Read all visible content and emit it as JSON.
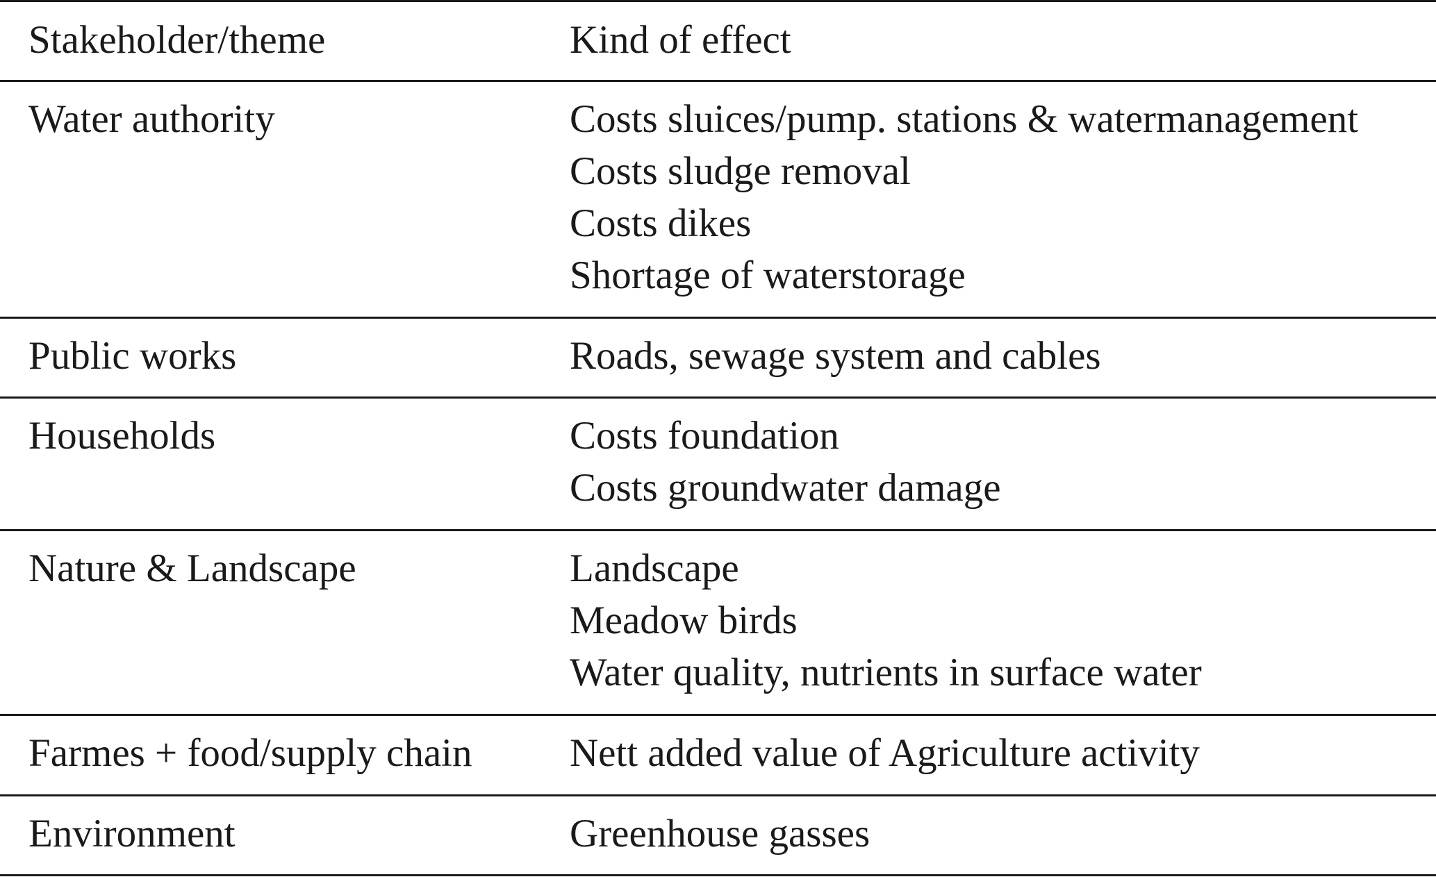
{
  "table": {
    "headers": [
      "Stakeholder/theme",
      "Kind of effect"
    ],
    "rows": [
      {
        "stakeholder": "Water authority",
        "effects": [
          "Costs sluices/pump. stations & watermanagement",
          "Costs sludge removal",
          "Costs dikes",
          "Shortage of waterstorage"
        ]
      },
      {
        "stakeholder": "Public works",
        "effects": [
          "Roads, sewage system and cables"
        ]
      },
      {
        "stakeholder": "Households",
        "effects": [
          "Costs foundation",
          "Costs groundwater damage"
        ]
      },
      {
        "stakeholder": "Nature & Landscape",
        "effects": [
          "Landscape",
          "Meadow birds",
          "Water quality, nutrients in surface water"
        ]
      },
      {
        "stakeholder": "Farmes + food/supply chain",
        "effects": [
          "Nett added value of Agriculture activity"
        ]
      },
      {
        "stakeholder": "Environment",
        "effects": [
          "Greenhouse gasses"
        ]
      }
    ]
  }
}
